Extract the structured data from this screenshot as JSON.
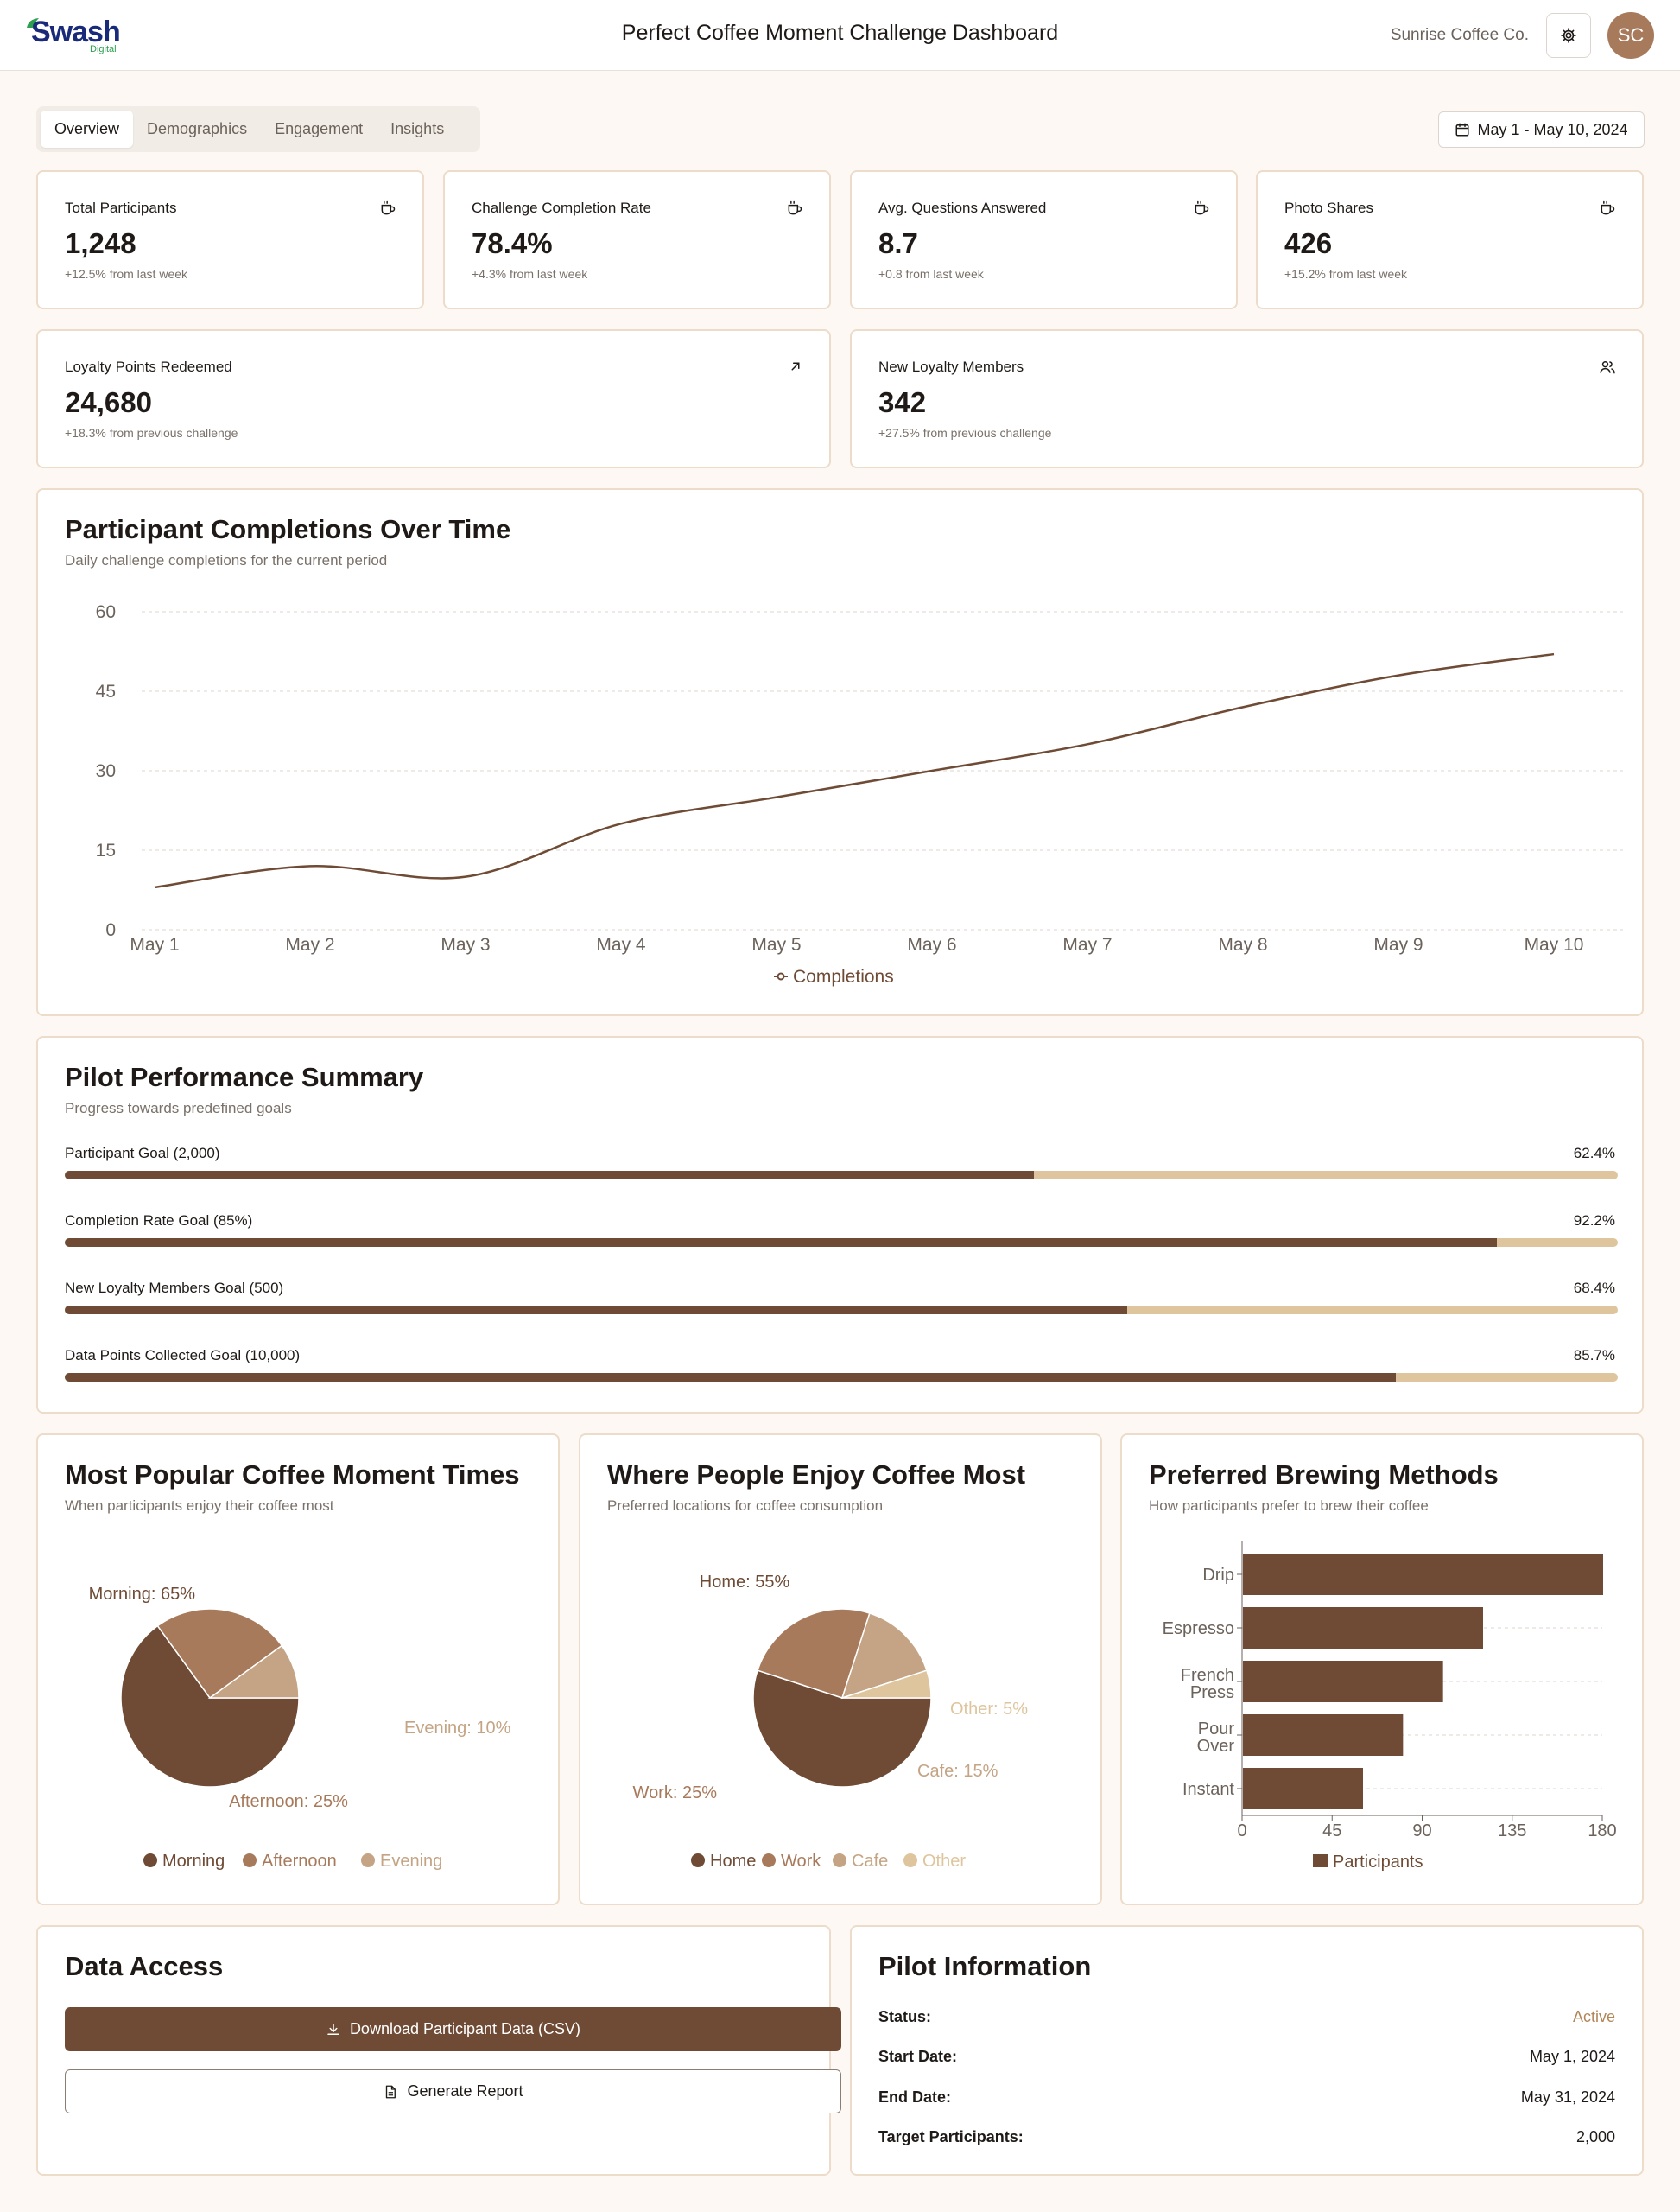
{
  "header": {
    "logo_text": "Swash",
    "logo_sub": "Digital",
    "title": "Perfect Coffee Moment Challenge Dashboard",
    "org": "Sunrise Coffee Co.",
    "avatar_initials": "SC"
  },
  "tabs": [
    "Overview",
    "Demographics",
    "Engagement",
    "Insights"
  ],
  "date_range": "May 1 - May 10, 2024",
  "stats": [
    {
      "label": "Total Participants",
      "value": "1,248",
      "delta": "+12.5%",
      "delta_text": "from last week",
      "icon": "coffee-cup-icon"
    },
    {
      "label": "Challenge Completion Rate",
      "value": "78.4%",
      "delta": "+4.3%",
      "delta_text": "from last week",
      "icon": "coffee-cup-icon"
    },
    {
      "label": "Avg. Questions Answered",
      "value": "8.7",
      "delta": "+0.8",
      "delta_text": "from last week",
      "icon": "coffee-cup-icon"
    },
    {
      "label": "Photo Shares",
      "value": "426",
      "delta": "+15.2%",
      "delta_text": "from last week",
      "icon": "coffee-cup-icon"
    }
  ],
  "stats2": [
    {
      "label": "Loyalty Points Redeemed",
      "value": "24,680",
      "delta": "+18.3%",
      "delta_text": "from previous challenge",
      "icon": "arrow-up-right-icon"
    },
    {
      "label": "New Loyalty Members",
      "value": "342",
      "delta": "+27.5%",
      "delta_text": "from previous challenge",
      "icon": "users-icon"
    }
  ],
  "completions": {
    "title": "Participant Completions Over Time",
    "subtitle": "Daily challenge completions for the current period",
    "legend": "Completions"
  },
  "goals": {
    "title": "Pilot Performance Summary",
    "subtitle": "Progress towards predefined goals",
    "items": [
      {
        "label": "Participant Goal (2,000)",
        "pct_text": "62.4%",
        "pct": 62.4
      },
      {
        "label": "Completion Rate Goal (85%)",
        "pct_text": "92.2%",
        "pct": 92.2
      },
      {
        "label": "New Loyalty Members Goal (500)",
        "pct_text": "68.4%",
        "pct": 68.4
      },
      {
        "label": "Data Points Collected Goal (10,000)",
        "pct_text": "85.7%",
        "pct": 85.7
      }
    ]
  },
  "times_card": {
    "title": "Most Popular Coffee Moment Times",
    "subtitle": "When participants enjoy their coffee most"
  },
  "places_card": {
    "title": "Where People Enjoy Coffee Most",
    "subtitle": "Preferred locations for coffee consumption"
  },
  "brew_card": {
    "title": "Preferred Brewing Methods",
    "subtitle": "How participants prefer to brew their coffee"
  },
  "data_access": {
    "title": "Data Access",
    "download_label": "Download Participant Data (CSV)",
    "report_label": "Generate Report"
  },
  "pilot_info": {
    "title": "Pilot Information",
    "rows": [
      {
        "key": "Status:",
        "value": "Active"
      },
      {
        "key": "Start Date:",
        "value": "May 1, 2024"
      },
      {
        "key": "End Date:",
        "value": "May 31, 2024"
      },
      {
        "key": "Target Participants:",
        "value": "2,000"
      }
    ]
  },
  "colors": {
    "primary": "#6f4b35",
    "secondary": "#a87a5c",
    "tertiary": "#c4a484",
    "light": "#dec59e",
    "active": "#b28659"
  },
  "chart_data": [
    {
      "type": "line",
      "title": "Participant Completions Over Time",
      "x": [
        "May 1",
        "May 2",
        "May 3",
        "May 4",
        "May 5",
        "May 6",
        "May 7",
        "May 8",
        "May 9",
        "May 10"
      ],
      "series": [
        {
          "name": "Completions",
          "values": [
            8,
            12,
            10,
            20,
            25,
            30,
            35,
            42,
            48,
            52
          ]
        }
      ],
      "ylim": [
        0,
        60
      ],
      "yticks": [
        0,
        15,
        30,
        45,
        60
      ],
      "grid": true,
      "legend": "bottom"
    },
    {
      "type": "pie",
      "title": "Most Popular Coffee Moment Times",
      "slices": [
        {
          "name": "Morning",
          "value": 65,
          "label": "Morning: 65%"
        },
        {
          "name": "Afternoon",
          "value": 25,
          "label": "Afternoon: 25%"
        },
        {
          "name": "Evening",
          "value": 10,
          "label": "Evening: 10%"
        }
      ],
      "legend": "bottom"
    },
    {
      "type": "pie",
      "title": "Where People Enjoy Coffee Most",
      "slices": [
        {
          "name": "Home",
          "value": 55,
          "label": "Home: 55%"
        },
        {
          "name": "Work",
          "value": 25,
          "label": "Work: 25%"
        },
        {
          "name": "Cafe",
          "value": 15,
          "label": "Cafe: 15%"
        },
        {
          "name": "Other",
          "value": 5,
          "label": "Other: 5%"
        }
      ],
      "legend": "bottom"
    },
    {
      "type": "bar",
      "orientation": "horizontal",
      "title": "Preferred Brewing Methods",
      "categories": [
        "Drip",
        "Espresso",
        "French Press",
        "Pour Over",
        "Instant"
      ],
      "series": [
        {
          "name": "Participants",
          "values": [
            180,
            120,
            100,
            80,
            60
          ]
        }
      ],
      "xlim": [
        0,
        180
      ],
      "xticks": [
        0,
        45,
        90,
        135,
        180
      ],
      "grid": true,
      "legend": "bottom"
    }
  ]
}
